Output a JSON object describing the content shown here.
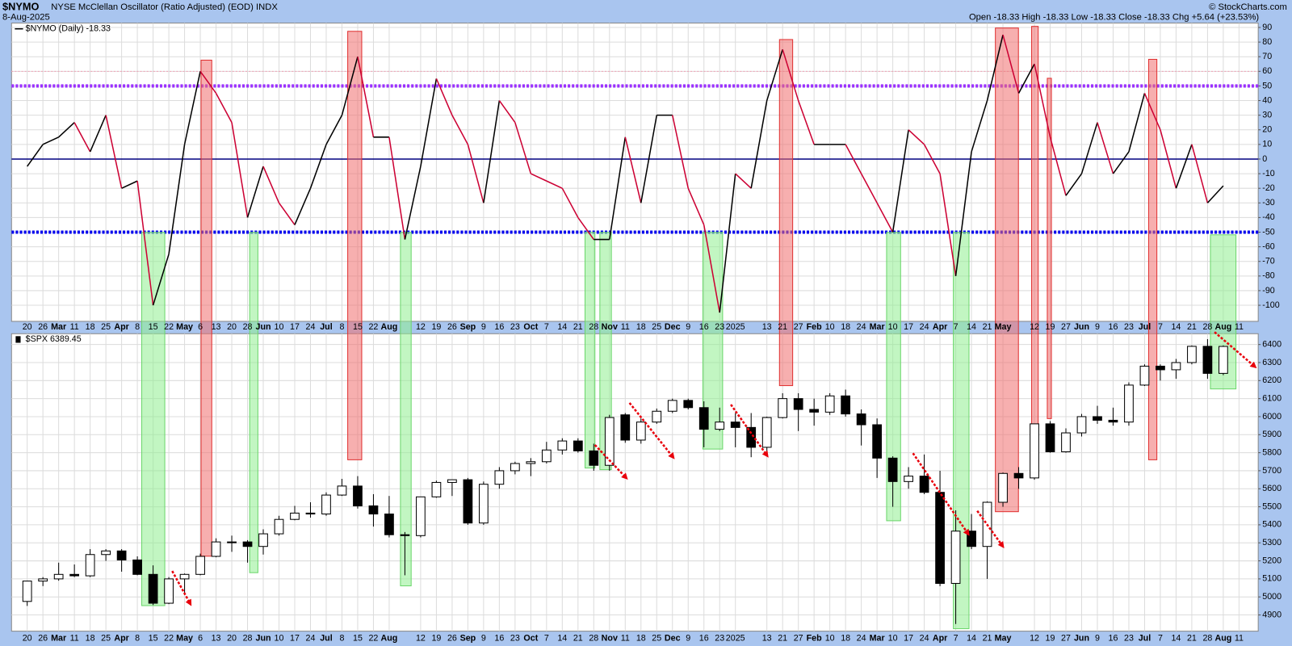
{
  "header": {
    "symbol": "$NYMO",
    "name": "NYSE McClellan Oscillator (Ratio Adjusted) (EOD) INDX",
    "date": "8-Aug-2025",
    "quote": "Open -18.33 High -18.33 Low -18.33 Close -18.33 Chg +5.64 (+23.53%)",
    "copyright": "© StockCharts.com"
  },
  "chart_data": [
    {
      "type": "line",
      "categories": [
        "20",
        "26",
        "Mar",
        "11",
        "18",
        "25",
        "Apr",
        "8",
        "15",
        "22",
        "May",
        "6",
        "13",
        "20",
        "28",
        "Jun",
        "10",
        "17",
        "24",
        "Jul",
        "8",
        "15",
        "22",
        "Aug",
        null,
        "12",
        "19",
        "26",
        "Sep",
        "9",
        "16",
        "23",
        "Oct",
        "7",
        "14",
        "21",
        "28",
        "Nov",
        "11",
        "18",
        "25",
        "Dec",
        "9",
        "16",
        "23",
        "2025",
        null,
        "13",
        "21",
        "27",
        "Feb",
        "10",
        "18",
        "24",
        "Mar",
        "10",
        "17",
        "24",
        "Apr",
        "7",
        "14",
        "21",
        "May",
        null,
        "12",
        "19",
        "27",
        "Jun",
        "9",
        "16",
        "23",
        "Jul",
        "7",
        "14",
        "21",
        "28",
        "Aug",
        "11"
      ],
      "series": [
        {
          "name": "$NYMO (Daily) -18.33",
          "up_color": "#000000",
          "down_color": "#cc0033",
          "values": [
            -5,
            10,
            15,
            25,
            5,
            30,
            -20,
            -15,
            -100,
            -65,
            10,
            60,
            45,
            25,
            -40,
            -5,
            -30,
            -45,
            -20,
            10,
            30,
            70,
            15,
            15,
            -55,
            -5,
            55,
            30,
            10,
            -30,
            40,
            25,
            -10,
            -15,
            -20,
            -40,
            -55,
            -55,
            15,
            -30,
            30,
            30,
            -20,
            -45,
            -105,
            -10,
            -20,
            40,
            75,
            40,
            10,
            10,
            10,
            -10,
            -30,
            -50,
            20,
            10,
            -10,
            -80,
            5,
            40,
            85,
            45,
            65,
            15,
            -25,
            -10,
            25,
            -10,
            5,
            45,
            20,
            -20,
            10,
            -30,
            -18.33,
            null
          ]
        }
      ],
      "ylim": [
        -111,
        93
      ],
      "yticks": [
        -100,
        -90,
        -80,
        -70,
        -60,
        -50,
        -40,
        -30,
        -20,
        -10,
        0,
        10,
        20,
        30,
        40,
        50,
        60,
        70,
        80,
        90
      ],
      "grid": true,
      "reference_lines": [
        {
          "value": 60,
          "color": "#f2a0b4",
          "width": 1,
          "dash": "2 2"
        },
        {
          "value": 50,
          "color": "#9b30ff",
          "width": 4,
          "dash": "3 2"
        },
        {
          "value": 0,
          "color": "#000080",
          "width": 1.5,
          "dash": "none"
        },
        {
          "value": -50,
          "color": "#0000ee",
          "width": 4,
          "dash": "3 2"
        }
      ]
    },
    {
      "type": "candlestick",
      "categories": [
        "20",
        "26",
        "Mar",
        "11",
        "18",
        "25",
        "Apr",
        "8",
        "15",
        "22",
        "May",
        "6",
        "13",
        "20",
        "28",
        "Jun",
        "10",
        "17",
        "24",
        "Jul",
        "8",
        "15",
        "22",
        "Aug",
        null,
        "12",
        "19",
        "26",
        "Sep",
        "9",
        "16",
        "23",
        "Oct",
        "7",
        "14",
        "21",
        "28",
        "Nov",
        "11",
        "18",
        "25",
        "Dec",
        "9",
        "16",
        "23",
        "2025",
        null,
        "13",
        "21",
        "27",
        "Feb",
        "10",
        "18",
        "24",
        "Mar",
        "10",
        "17",
        "24",
        "Apr",
        "7",
        "14",
        "21",
        "May",
        null,
        "12",
        "19",
        "27",
        "Jun",
        "9",
        "16",
        "23",
        "Jul",
        "7",
        "14",
        "21",
        "28",
        "Aug",
        "11"
      ],
      "series": [
        {
          "name": "$SPX 6389.45",
          "up_color": "#ffffff",
          "down_color": "#000000",
          "open": [
            4975,
            5088,
            5100,
            5125,
            5117,
            5235,
            5255,
            5205,
            5125,
            4965,
            5100,
            5125,
            5225,
            5305,
            5305,
            5280,
            5350,
            5430,
            5465,
            5460,
            5565,
            5615,
            5505,
            5460,
            5345,
            5340,
            5555,
            5635,
            5650,
            5410,
            5625,
            5700,
            5740,
            5750,
            5815,
            5865,
            5810,
            5730,
            6010,
            5870,
            5970,
            6030,
            6090,
            6050,
            5930,
            5970,
            5940,
            5830,
            5995,
            6100,
            6040,
            6025,
            6115,
            6015,
            5955,
            5770,
            5640,
            5670,
            5580,
            5075,
            5365,
            5280,
            5525,
            5685,
            5660,
            5960,
            5805,
            5910,
            6000,
            5980,
            5970,
            6175,
            6280,
            6260,
            6300,
            6390,
            6240,
            null
          ],
          "high": [
            5090,
            5110,
            5190,
            5180,
            5265,
            5265,
            5265,
            5225,
            5175,
            5110,
            5130,
            5240,
            5325,
            5340,
            5315,
            5375,
            5450,
            5505,
            5525,
            5580,
            5655,
            5670,
            5570,
            5560,
            5360,
            5555,
            5645,
            5650,
            5660,
            5640,
            5720,
            5750,
            5770,
            5860,
            5880,
            5880,
            5850,
            6010,
            6020,
            5990,
            6045,
            6100,
            6100,
            6085,
            6050,
            6020,
            6020,
            6000,
            6130,
            6130,
            6100,
            6130,
            6150,
            6040,
            5990,
            5780,
            5720,
            5790,
            5700,
            5480,
            5460,
            5530,
            5690,
            5720,
            5960,
            5975,
            5935,
            6015,
            6060,
            6050,
            6190,
            6290,
            6290,
            6320,
            6395,
            6430,
            6395,
            null
          ],
          "low": [
            4950,
            5060,
            5090,
            5110,
            5110,
            5200,
            5140,
            5120,
            4955,
            4960,
            5010,
            5120,
            5220,
            5250,
            5190,
            5235,
            5340,
            5425,
            5440,
            5450,
            5560,
            5490,
            5390,
            5330,
            5120,
            5330,
            5550,
            5560,
            5400,
            5400,
            5600,
            5680,
            5670,
            5740,
            5790,
            5800,
            5700,
            5700,
            5855,
            5850,
            5960,
            6020,
            6040,
            5830,
            5920,
            5830,
            5775,
            5800,
            5990,
            5920,
            5950,
            6010,
            6000,
            5840,
            5660,
            5500,
            5600,
            5570,
            5060,
            4850,
            5265,
            5100,
            5500,
            5600,
            5650,
            5800,
            5800,
            5890,
            5960,
            5950,
            5950,
            6170,
            6200,
            6210,
            6290,
            6210,
            6230,
            null
          ],
          "close": [
            5088,
            5100,
            5125,
            5117,
            5235,
            5255,
            5205,
            5125,
            4965,
            5100,
            5125,
            5225,
            5305,
            5305,
            5280,
            5350,
            5430,
            5465,
            5460,
            5565,
            5615,
            5505,
            5460,
            5345,
            5340,
            5555,
            5635,
            5650,
            5410,
            5625,
            5700,
            5740,
            5750,
            5815,
            5865,
            5810,
            5730,
            5995,
            5870,
            5970,
            6030,
            6090,
            6050,
            5930,
            5970,
            5940,
            5830,
            5995,
            6100,
            6040,
            6025,
            6115,
            6015,
            5955,
            5770,
            5640,
            5670,
            5580,
            5075,
            5365,
            5280,
            5525,
            5685,
            5660,
            5960,
            5805,
            5910,
            6000,
            5980,
            5970,
            6175,
            6280,
            6260,
            6300,
            6390,
            6240,
            6389.45,
            null
          ]
        }
      ],
      "ylim": [
        4810,
        6460
      ],
      "yticks": [
        4900,
        5000,
        5100,
        5200,
        5300,
        5400,
        5500,
        5600,
        5700,
        5800,
        5900,
        6000,
        6100,
        6200,
        6300,
        6400
      ],
      "grid": true
    }
  ]
}
